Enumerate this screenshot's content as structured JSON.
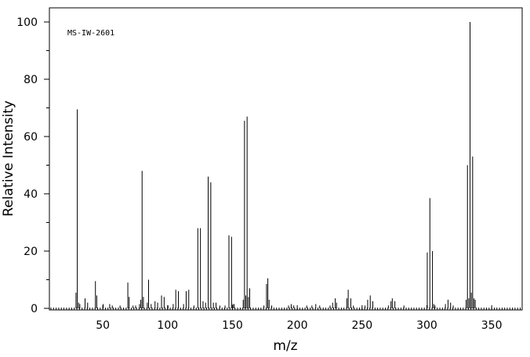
{
  "chart_data": {
    "type": "bar",
    "title": "",
    "annotation": "MS-IW-2601",
    "xlabel": "m/z",
    "ylabel": "Relative Intensity",
    "xlim": [
      9,
      375
    ],
    "ylim": [
      0,
      105
    ],
    "x_ticks": [
      50,
      100,
      150,
      200,
      250,
      300,
      350
    ],
    "y_ticks": [
      0,
      20,
      40,
      60,
      80,
      100
    ],
    "grid": false,
    "series": [
      {
        "name": "",
        "points": [
          {
            "x": 29,
            "y": 5.5
          },
          {
            "x": 30,
            "y": 69.5
          },
          {
            "x": 31,
            "y": 2.0
          },
          {
            "x": 32,
            "y": 1.5
          },
          {
            "x": 36,
            "y": 3.5
          },
          {
            "x": 38,
            "y": 2.0
          },
          {
            "x": 44,
            "y": 9.5
          },
          {
            "x": 45,
            "y": 4.5
          },
          {
            "x": 50,
            "y": 1.5
          },
          {
            "x": 55,
            "y": 1.5
          },
          {
            "x": 57,
            "y": 1.0
          },
          {
            "x": 63,
            "y": 1.0
          },
          {
            "x": 69,
            "y": 9.0
          },
          {
            "x": 70,
            "y": 4.0
          },
          {
            "x": 73,
            "y": 1.0
          },
          {
            "x": 75,
            "y": 1.0
          },
          {
            "x": 78,
            "y": 1.5
          },
          {
            "x": 79,
            "y": 3.0
          },
          {
            "x": 80,
            "y": 48.0
          },
          {
            "x": 81,
            "y": 4.0
          },
          {
            "x": 84,
            "y": 2.0
          },
          {
            "x": 85,
            "y": 10.0
          },
          {
            "x": 87,
            "y": 1.5
          },
          {
            "x": 90,
            "y": 2.5
          },
          {
            "x": 92,
            "y": 2.0
          },
          {
            "x": 95,
            "y": 4.5
          },
          {
            "x": 97,
            "y": 4.0
          },
          {
            "x": 100,
            "y": 1.0
          },
          {
            "x": 104,
            "y": 1.5
          },
          {
            "x": 106,
            "y": 6.5
          },
          {
            "x": 108,
            "y": 6.0
          },
          {
            "x": 112,
            "y": 1.5
          },
          {
            "x": 114,
            "y": 6.0
          },
          {
            "x": 116,
            "y": 6.5
          },
          {
            "x": 120,
            "y": 1.0
          },
          {
            "x": 123,
            "y": 28.0
          },
          {
            "x": 125,
            "y": 28.0
          },
          {
            "x": 127,
            "y": 2.5
          },
          {
            "x": 129,
            "y": 2.0
          },
          {
            "x": 131,
            "y": 46.0
          },
          {
            "x": 133,
            "y": 44.0
          },
          {
            "x": 135,
            "y": 2.0
          },
          {
            "x": 137,
            "y": 2.0
          },
          {
            "x": 140,
            "y": 1.0
          },
          {
            "x": 144,
            "y": 1.0
          },
          {
            "x": 147,
            "y": 25.5
          },
          {
            "x": 149,
            "y": 25.0
          },
          {
            "x": 150,
            "y": 1.5
          },
          {
            "x": 151,
            "y": 1.5
          },
          {
            "x": 158,
            "y": 3.0
          },
          {
            "x": 159,
            "y": 65.5
          },
          {
            "x": 160,
            "y": 4.5
          },
          {
            "x": 161,
            "y": 67.0
          },
          {
            "x": 162,
            "y": 4.0
          },
          {
            "x": 163,
            "y": 7.0
          },
          {
            "x": 174,
            "y": 1.0
          },
          {
            "x": 176,
            "y": 8.5
          },
          {
            "x": 177,
            "y": 10.5
          },
          {
            "x": 178,
            "y": 3.0
          },
          {
            "x": 180,
            "y": 1.0
          },
          {
            "x": 193,
            "y": 1.0
          },
          {
            "x": 195,
            "y": 1.5
          },
          {
            "x": 197,
            "y": 1.0
          },
          {
            "x": 207,
            "y": 1.0
          },
          {
            "x": 211,
            "y": 1.0
          },
          {
            "x": 214,
            "y": 1.5
          },
          {
            "x": 217,
            "y": 1.0
          },
          {
            "x": 225,
            "y": 1.0
          },
          {
            "x": 227,
            "y": 2.0
          },
          {
            "x": 229,
            "y": 3.5
          },
          {
            "x": 230,
            "y": 2.0
          },
          {
            "x": 238,
            "y": 3.5
          },
          {
            "x": 239,
            "y": 6.5
          },
          {
            "x": 241,
            "y": 3.5
          },
          {
            "x": 243,
            "y": 1.0
          },
          {
            "x": 252,
            "y": 1.0
          },
          {
            "x": 254,
            "y": 3.0
          },
          {
            "x": 256,
            "y": 4.5
          },
          {
            "x": 258,
            "y": 2.5
          },
          {
            "x": 270,
            "y": 1.0
          },
          {
            "x": 272,
            "y": 2.5
          },
          {
            "x": 273,
            "y": 3.5
          },
          {
            "x": 275,
            "y": 2.5
          },
          {
            "x": 282,
            "y": 1.0
          },
          {
            "x": 300,
            "y": 19.5
          },
          {
            "x": 302,
            "y": 38.5
          },
          {
            "x": 304,
            "y": 20.0
          },
          {
            "x": 305,
            "y": 1.5
          },
          {
            "x": 306,
            "y": 1.0
          },
          {
            "x": 314,
            "y": 1.5
          },
          {
            "x": 316,
            "y": 3.0
          },
          {
            "x": 318,
            "y": 2.0
          },
          {
            "x": 320,
            "y": 1.0
          },
          {
            "x": 330,
            "y": 3.0
          },
          {
            "x": 331,
            "y": 50.0
          },
          {
            "x": 332,
            "y": 3.5
          },
          {
            "x": 333,
            "y": 100.0
          },
          {
            "x": 334,
            "y": 5.5
          },
          {
            "x": 335,
            "y": 53.0
          },
          {
            "x": 336,
            "y": 3.5
          },
          {
            "x": 337,
            "y": 3.0
          }
        ]
      }
    ]
  }
}
